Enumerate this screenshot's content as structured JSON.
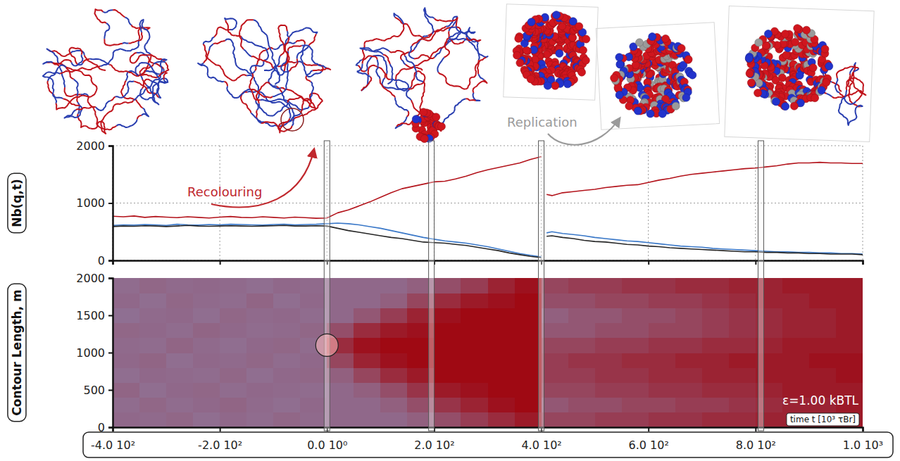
{
  "chart_data": [
    {
      "type": "line",
      "y_label": "Nb(q,t)",
      "annotations": [
        "Recolouring",
        "Replication"
      ],
      "xlim": [
        -400,
        1000
      ],
      "ylim": [
        0,
        2000
      ],
      "xticks": [
        -400,
        -200,
        0,
        200,
        400,
        600,
        800,
        1000
      ],
      "yticks": [
        0,
        1000,
        2000
      ],
      "tick_labels": "y",
      "grid": true,
      "snapshot_times": [
        0,
        195,
        400,
        810
      ],
      "x": [
        -400,
        -380,
        -360,
        -340,
        -320,
        -300,
        -280,
        -260,
        -240,
        -220,
        -200,
        -180,
        -160,
        -140,
        -120,
        -100,
        -80,
        -60,
        -40,
        -20,
        0,
        20,
        40,
        60,
        80,
        100,
        120,
        140,
        160,
        180,
        200,
        220,
        240,
        260,
        280,
        300,
        320,
        340,
        360,
        380,
        400,
        405,
        410,
        420,
        440,
        460,
        480,
        500,
        520,
        540,
        560,
        580,
        600,
        620,
        640,
        660,
        680,
        700,
        720,
        740,
        760,
        780,
        800,
        820,
        840,
        860,
        880,
        900,
        920,
        940,
        960,
        980,
        1000
      ],
      "series": [
        {
          "color": "#b3131b",
          "values": [
            770,
            760,
            775,
            750,
            765,
            755,
            745,
            760,
            750,
            740,
            755,
            765,
            750,
            745,
            760,
            750,
            740,
            755,
            745,
            735,
            740,
            830,
            880,
            950,
            1020,
            1100,
            1180,
            1250,
            1290,
            1330,
            1370,
            1380,
            1420,
            1470,
            1530,
            1580,
            1620,
            1660,
            1700,
            1760,
            1810,
            null,
            1150,
            1130,
            1180,
            1200,
            1220,
            1240,
            1270,
            1290,
            1310,
            1320,
            1360,
            1400,
            1430,
            1470,
            1500,
            1520,
            1540,
            1560,
            1580,
            1600,
            1610,
            1630,
            1650,
            1680,
            1700,
            1700,
            1710,
            1700,
            1700,
            1690,
            1690
          ]
        },
        {
          "color": "#3a78c8",
          "values": [
            610,
            620,
            615,
            625,
            620,
            610,
            630,
            620,
            615,
            625,
            620,
            630,
            625,
            620,
            615,
            625,
            630,
            620,
            625,
            630,
            640,
            650,
            640,
            620,
            590,
            560,
            520,
            480,
            440,
            400,
            370,
            340,
            320,
            300,
            270,
            240,
            200,
            160,
            120,
            90,
            60,
            null,
            480,
            500,
            470,
            450,
            430,
            400,
            380,
            360,
            340,
            330,
            310,
            290,
            270,
            250,
            240,
            230,
            210,
            200,
            190,
            180,
            170,
            160,
            150,
            150,
            140,
            140,
            130,
            130,
            120,
            120,
            110
          ]
        },
        {
          "color": "#262626",
          "values": [
            590,
            600,
            595,
            605,
            600,
            590,
            600,
            610,
            600,
            595,
            600,
            605,
            600,
            595,
            600,
            605,
            610,
            600,
            600,
            605,
            600,
            560,
            520,
            490,
            460,
            430,
            400,
            380,
            350,
            320,
            310,
            300,
            280,
            260,
            230,
            200,
            170,
            130,
            100,
            70,
            50,
            null,
            420,
            430,
            400,
            380,
            350,
            330,
            320,
            300,
            280,
            270,
            250,
            240,
            220,
            210,
            200,
            190,
            180,
            170,
            160,
            150,
            150,
            140,
            140,
            130,
            130,
            120,
            120,
            110,
            110,
            110,
            100
          ]
        }
      ]
    },
    {
      "type": "heatmap",
      "y_label": "Contour Length, m",
      "x_label": "time t [10³ τBr]",
      "annotations": [
        "ε=1.00 kBTL"
      ],
      "xlim": [
        -400,
        1000
      ],
      "ylim": [
        0,
        2000
      ],
      "xticks": [
        {
          "value": -400,
          "label": "-4.0 10²"
        },
        {
          "value": -200,
          "label": "-2.0 10²"
        },
        {
          "value": 0,
          "label": "0.0 10⁰"
        },
        {
          "value": 200,
          "label": "2.0 10²"
        },
        {
          "value": 400,
          "label": "4.0 10²"
        },
        {
          "value": 600,
          "label": "6.0 10²"
        },
        {
          "value": 800,
          "label": "8.0 10²"
        },
        {
          "value": 1000,
          "label": "1.0 10³"
        }
      ],
      "yticks": [
        0,
        500,
        1000,
        1500,
        2000
      ],
      "colors": [
        "#86aee0",
        "#a00008"
      ],
      "color_range": [
        0,
        1
      ],
      "x_bins": [
        -400,
        -350,
        -300,
        -250,
        -200,
        -150,
        -100,
        -50,
        0,
        50,
        100,
        150,
        200,
        250,
        300,
        350,
        400,
        450,
        500,
        550,
        600,
        650,
        700,
        750,
        800,
        850,
        900,
        950,
        1000
      ],
      "y_bins": [
        0,
        200,
        400,
        600,
        800,
        1000,
        1200,
        1400,
        1600,
        1800,
        2000
      ],
      "cells": [
        [
          0.4,
          0.38,
          0.42,
          0.37,
          0.4,
          0.39,
          0.41,
          0.36,
          0.4,
          0.38
        ],
        [
          0.39,
          0.41,
          0.37,
          0.4,
          0.42,
          0.38,
          0.4,
          0.39,
          0.37,
          0.41
        ],
        [
          0.41,
          0.38,
          0.4,
          0.39,
          0.37,
          0.42,
          0.38,
          0.4,
          0.41,
          0.39
        ],
        [
          0.37,
          0.4,
          0.41,
          0.38,
          0.4,
          0.39,
          0.42,
          0.37,
          0.39,
          0.4
        ],
        [
          0.4,
          0.42,
          0.38,
          0.41,
          0.39,
          0.37,
          0.4,
          0.41,
          0.38,
          0.39
        ],
        [
          0.38,
          0.39,
          0.4,
          0.37,
          0.41,
          0.4,
          0.38,
          0.39,
          0.42,
          0.37
        ],
        [
          0.41,
          0.37,
          0.39,
          0.4,
          0.38,
          0.41,
          0.39,
          0.4,
          0.37,
          0.4
        ],
        [
          0.39,
          0.4,
          0.38,
          0.41,
          0.4,
          0.38,
          0.41,
          0.38,
          0.4,
          0.39
        ],
        [
          0.4,
          0.4,
          0.4,
          0.45,
          0.6,
          0.75,
          0.55,
          0.4,
          0.4,
          0.4
        ],
        [
          0.4,
          0.4,
          0.45,
          0.6,
          0.8,
          0.9,
          0.75,
          0.5,
          0.4,
          0.4
        ],
        [
          0.4,
          0.45,
          0.55,
          0.75,
          0.9,
          0.95,
          0.85,
          0.65,
          0.45,
          0.4
        ],
        [
          0.45,
          0.55,
          0.7,
          0.85,
          0.95,
          0.95,
          0.9,
          0.8,
          0.6,
          0.45
        ],
        [
          0.55,
          0.7,
          0.85,
          0.95,
          0.95,
          0.95,
          0.95,
          0.9,
          0.75,
          0.55
        ],
        [
          0.65,
          0.8,
          0.9,
          0.95,
          0.95,
          0.95,
          0.95,
          0.95,
          0.85,
          0.65
        ],
        [
          0.75,
          0.9,
          0.95,
          0.95,
          0.95,
          0.95,
          0.95,
          0.95,
          0.9,
          0.8
        ],
        [
          0.85,
          0.95,
          0.95,
          0.95,
          0.95,
          0.95,
          0.95,
          0.95,
          0.95,
          0.9
        ],
        [
          0.6,
          0.5,
          0.6,
          0.65,
          0.65,
          0.6,
          0.5,
          0.45,
          0.55,
          0.6
        ],
        [
          0.6,
          0.55,
          0.6,
          0.65,
          0.7,
          0.6,
          0.5,
          0.5,
          0.55,
          0.65
        ],
        [
          0.65,
          0.55,
          0.65,
          0.7,
          0.7,
          0.65,
          0.55,
          0.5,
          0.6,
          0.65
        ],
        [
          0.65,
          0.6,
          0.65,
          0.7,
          0.75,
          0.65,
          0.55,
          0.55,
          0.6,
          0.7
        ],
        [
          0.7,
          0.6,
          0.7,
          0.75,
          0.75,
          0.7,
          0.6,
          0.55,
          0.65,
          0.7
        ],
        [
          0.7,
          0.65,
          0.7,
          0.75,
          0.8,
          0.7,
          0.6,
          0.6,
          0.65,
          0.75
        ],
        [
          0.75,
          0.65,
          0.75,
          0.8,
          0.8,
          0.75,
          0.65,
          0.65,
          0.7,
          0.75
        ],
        [
          0.75,
          0.7,
          0.75,
          0.8,
          0.85,
          0.75,
          0.7,
          0.7,
          0.75,
          0.8
        ],
        [
          0.8,
          0.75,
          0.8,
          0.85,
          0.85,
          0.8,
          0.75,
          0.75,
          0.8,
          0.8
        ],
        [
          0.8,
          0.8,
          0.85,
          0.85,
          0.85,
          0.85,
          0.8,
          0.8,
          0.8,
          0.85
        ],
        [
          0.85,
          0.8,
          0.85,
          0.85,
          0.9,
          0.85,
          0.8,
          0.8,
          0.85,
          0.85
        ],
        [
          0.85,
          0.85,
          0.85,
          0.9,
          0.9,
          0.85,
          0.85,
          0.85,
          0.85,
          0.85
        ]
      ]
    }
  ]
}
